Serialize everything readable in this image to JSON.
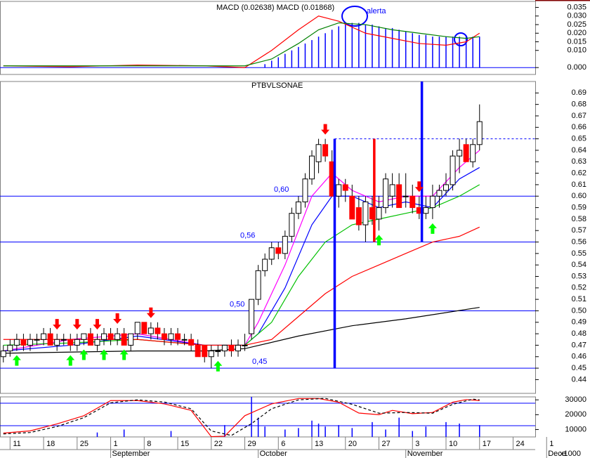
{
  "chart_data": [
    {
      "type": "macd",
      "title": "MACD (0.02638) MACD (0.01868)",
      "annotation": "alerta",
      "xlim": [
        -0.5,
        79.3
      ],
      "ylim": [
        -0.004,
        0.0385
      ],
      "yticks": [
        {
          "value": 0,
          "label": "0.000"
        },
        {
          "value": 0.01,
          "label": "0.010"
        },
        0.015,
        {
          "value": 0.02,
          "label": "0.020"
        },
        0.025,
        {
          "value": 0.03,
          "label": "0.030"
        },
        0.035
      ],
      "series": [
        {
          "color": "#ff0000",
          "x": [
            0,
            10,
            20,
            30,
            36,
            40,
            44,
            47,
            50,
            54,
            58,
            62,
            66,
            69,
            71
          ],
          "values": [
            0.001,
            0.0005,
            0.0015,
            0.001,
            0,
            0.01,
            0.022,
            0.03,
            0.027,
            0.02,
            0.017,
            0.014,
            0.013,
            0.015,
            0.02
          ]
        },
        {
          "color": "#008000",
          "x": [
            0,
            10,
            20,
            30,
            36,
            40,
            44,
            47,
            50,
            54,
            58,
            62,
            66,
            69,
            71
          ],
          "values": [
            0.001,
            0.001,
            0.001,
            0.001,
            0.001,
            0.005,
            0.014,
            0.022,
            0.026,
            0.025,
            0.022,
            0.02,
            0.018,
            0.017,
            0.018
          ]
        }
      ],
      "histogram": {
        "color": "#0000ff",
        "x": [
          39,
          40,
          41,
          42,
          43,
          44,
          45,
          46,
          47,
          48,
          49,
          50,
          51,
          52,
          53,
          54,
          55,
          56,
          57,
          58,
          59,
          60,
          61,
          62,
          63,
          64,
          65,
          66,
          67,
          68,
          69,
          70,
          71
        ],
        "values": [
          0.002,
          0.004,
          0.006,
          0.008,
          0.01,
          0.012,
          0.014,
          0.016,
          0.018,
          0.02,
          0.022,
          0.024,
          0.025,
          0.026,
          0.026,
          0.025,
          0.025,
          0.024,
          0.023,
          0.023,
          0.022,
          0.021,
          0.02,
          0.019,
          0.019,
          0.018,
          0.018,
          0.018,
          0.018,
          0.018,
          0.018,
          0.018,
          0.018
        ]
      }
    },
    {
      "type": "candlestick",
      "title": "PTBVLSONAE",
      "xlim": [
        -0.5,
        79.3
      ],
      "ylim": [
        0.428,
        0.7
      ],
      "yticks": [
        0.44,
        0.45,
        0.46,
        0.47,
        0.48,
        0.49,
        {
          "value": 0.5,
          "label": "0.50"
        },
        0.51,
        0.52,
        0.53,
        0.54,
        0.55,
        0.56,
        0.57,
        0.58,
        0.59,
        {
          "value": 0.6,
          "label": "0.60"
        },
        0.61,
        0.62,
        0.63,
        0.64,
        0.65,
        0.66,
        0.67,
        0.68,
        0.69
      ],
      "up_color": "#ffffff",
      "down_color": "#ff0000",
      "ohlc": [
        [
          0.46,
          0.47,
          0.455,
          0.465
        ],
        [
          0.465,
          0.475,
          0.46,
          0.47
        ],
        [
          0.47,
          0.48,
          0.465,
          0.475
        ],
        [
          0.475,
          0.48,
          0.465,
          0.47
        ],
        [
          0.47,
          0.48,
          0.465,
          0.475
        ],
        [
          0.475,
          0.48,
          0.47,
          0.475
        ],
        [
          0.475,
          0.485,
          0.47,
          0.48
        ],
        [
          0.48,
          0.485,
          0.47,
          0.47
        ],
        [
          0.47,
          0.48,
          0.465,
          0.475
        ],
        [
          0.475,
          0.48,
          0.47,
          0.475
        ],
        [
          0.475,
          0.48,
          0.465,
          0.47
        ],
        [
          0.47,
          0.48,
          0.465,
          0.475
        ],
        [
          0.475,
          0.48,
          0.47,
          0.48
        ],
        [
          0.48,
          0.485,
          0.47,
          0.47
        ],
        [
          0.47,
          0.48,
          0.465,
          0.475
        ],
        [
          0.475,
          0.485,
          0.47,
          0.48
        ],
        [
          0.48,
          0.485,
          0.47,
          0.475
        ],
        [
          0.475,
          0.485,
          0.47,
          0.48
        ],
        [
          0.48,
          0.485,
          0.47,
          0.47
        ],
        [
          0.47,
          0.48,
          0.465,
          0.48
        ],
        [
          0.48,
          0.49,
          0.475,
          0.49
        ],
        [
          0.49,
          0.49,
          0.48,
          0.48
        ],
        [
          0.48,
          0.49,
          0.475,
          0.485
        ],
        [
          0.485,
          0.49,
          0.475,
          0.48
        ],
        [
          0.48,
          0.485,
          0.47,
          0.475
        ],
        [
          0.475,
          0.485,
          0.47,
          0.48
        ],
        [
          0.48,
          0.485,
          0.47,
          0.475
        ],
        [
          0.475,
          0.48,
          0.47,
          0.475
        ],
        [
          0.475,
          0.48,
          0.465,
          0.47
        ],
        [
          0.47,
          0.475,
          0.46,
          0.46
        ],
        [
          0.47,
          0.47,
          0.455,
          0.46
        ],
        [
          0.46,
          0.47,
          0.45,
          0.465
        ],
        [
          0.465,
          0.47,
          0.46,
          0.465
        ],
        [
          0.465,
          0.47,
          0.46,
          0.47
        ],
        [
          0.47,
          0.475,
          0.46,
          0.465
        ],
        [
          0.465,
          0.475,
          0.46,
          0.47
        ],
        [
          0.47,
          0.48,
          0.465,
          0.47
        ],
        [
          0.48,
          0.51,
          0.475,
          0.51
        ],
        [
          0.51,
          0.54,
          0.505,
          0.535
        ],
        [
          0.535,
          0.55,
          0.53,
          0.545
        ],
        [
          0.545,
          0.56,
          0.54,
          0.555
        ],
        [
          0.555,
          0.56,
          0.545,
          0.55
        ],
        [
          0.55,
          0.57,
          0.545,
          0.565
        ],
        [
          0.565,
          0.59,
          0.56,
          0.585
        ],
        [
          0.585,
          0.6,
          0.58,
          0.595
        ],
        [
          0.595,
          0.62,
          0.59,
          0.615
        ],
        [
          0.615,
          0.64,
          0.61,
          0.635
        ],
        [
          0.63,
          0.65,
          0.62,
          0.645
        ],
        [
          0.645,
          0.65,
          0.63,
          0.635
        ],
        [
          0.63,
          0.64,
          0.6,
          0.6
        ],
        [
          0.6,
          0.615,
          0.59,
          0.61
        ],
        [
          0.61,
          0.615,
          0.595,
          0.605
        ],
        [
          0.6,
          0.61,
          0.58,
          0.58
        ],
        [
          0.59,
          0.6,
          0.57,
          0.575
        ],
        [
          0.575,
          0.6,
          0.56,
          0.595
        ],
        [
          0.59,
          0.6,
          0.575,
          0.58
        ],
        [
          0.58,
          0.6,
          0.57,
          0.59
        ],
        [
          0.59,
          0.62,
          0.585,
          0.615
        ],
        [
          0.6,
          0.62,
          0.59,
          0.61
        ],
        [
          0.61,
          0.62,
          0.59,
          0.59
        ],
        [
          0.6,
          0.62,
          0.59,
          0.6
        ],
        [
          0.6,
          0.61,
          0.585,
          0.59
        ],
        [
          0.59,
          0.6,
          0.58,
          0.585
        ],
        [
          0.585,
          0.6,
          0.58,
          0.59
        ],
        [
          0.59,
          0.61,
          0.58,
          0.6
        ],
        [
          0.6,
          0.61,
          0.59,
          0.605
        ],
        [
          0.605,
          0.62,
          0.6,
          0.61
        ],
        [
          0.61,
          0.64,
          0.605,
          0.635
        ],
        [
          0.635,
          0.65,
          0.62,
          0.64
        ],
        [
          0.645,
          0.65,
          0.63,
          0.63
        ],
        [
          0.63,
          0.65,
          0.625,
          0.645
        ],
        [
          0.645,
          0.68,
          0.64,
          0.665
        ]
      ],
      "series": [
        {
          "color": "#ff00ff",
          "x": [
            0,
            10,
            20,
            30,
            36,
            38,
            42,
            46,
            49,
            52,
            56,
            60,
            64,
            68,
            71
          ],
          "values": [
            0.465,
            0.475,
            0.48,
            0.47,
            0.47,
            0.49,
            0.54,
            0.6,
            0.62,
            0.605,
            0.595,
            0.6,
            0.6,
            0.625,
            0.64
          ]
        },
        {
          "color": "#0000ff",
          "x": [
            0,
            10,
            20,
            30,
            36,
            38,
            42,
            46,
            49,
            52,
            56,
            60,
            64,
            68,
            71
          ],
          "values": [
            0.465,
            0.47,
            0.478,
            0.47,
            0.47,
            0.48,
            0.52,
            0.575,
            0.6,
            0.6,
            0.59,
            0.595,
            0.59,
            0.615,
            0.625
          ]
        },
        {
          "color": "#00c000",
          "x": [
            0,
            10,
            20,
            30,
            36,
            40,
            44,
            48,
            52,
            56,
            60,
            64,
            68,
            71
          ],
          "values": [
            0.47,
            0.472,
            0.475,
            0.47,
            0.47,
            0.49,
            0.53,
            0.56,
            0.575,
            0.58,
            0.585,
            0.59,
            0.6,
            0.61
          ]
        },
        {
          "color": "#ff0000",
          "x": [
            0,
            10,
            20,
            30,
            36,
            40,
            44,
            48,
            52,
            56,
            60,
            64,
            68,
            71
          ],
          "values": [
            0.475,
            0.475,
            0.475,
            0.47,
            0.47,
            0.475,
            0.495,
            0.515,
            0.53,
            0.54,
            0.55,
            0.56,
            0.565,
            0.573
          ]
        },
        {
          "color": "#000000",
          "x": [
            0,
            20,
            30,
            36,
            44,
            52,
            60,
            71
          ],
          "values": [
            0.463,
            0.465,
            0.465,
            0.467,
            0.478,
            0.487,
            0.493,
            0.503
          ]
        }
      ],
      "levels": [
        {
          "value": 0.6,
          "label": "0,60"
        },
        {
          "value": 0.56,
          "label": "0,56"
        },
        {
          "value": 0.5,
          "label": "0,50"
        },
        {
          "value": 0.45,
          "label": "0,45"
        }
      ],
      "level_color": "#0000ff",
      "dashed_level": {
        "value": 0.65,
        "from_x": 49.4
      },
      "vlines": [
        {
          "x": 49.4,
          "from": 0.45,
          "to": 0.65,
          "color": "#0000ff"
        },
        {
          "x": 55.3,
          "from": 0.56,
          "to": 0.65,
          "color": "#ff0000"
        },
        {
          "x": 62.4,
          "from": 0.56,
          "to": 0.7,
          "color": "#0000ff"
        }
      ],
      "sell_signals": {
        "color": "#ff0000",
        "x": [
          8,
          11,
          14,
          17,
          22,
          48,
          62
        ]
      },
      "buy_signals": {
        "color": "#00ff00",
        "x": [
          2,
          10,
          12,
          15,
          18,
          32,
          56,
          64
        ]
      }
    },
    {
      "type": "oscillator",
      "xlim": [
        -0.5,
        79.3
      ],
      "ylim": [
        5000,
        32000
      ],
      "yticks": [
        10000,
        20000,
        30000
      ],
      "y_unit_label": "x1000",
      "series": [
        {
          "color": "#ff0000",
          "dashed": false,
          "x": [
            0,
            4,
            8,
            12,
            16,
            20,
            24,
            28,
            31,
            33,
            36,
            40,
            44,
            47,
            50,
            53,
            56,
            58,
            61,
            64,
            67,
            69,
            71
          ],
          "values": [
            7600,
            9100,
            13800,
            19300,
            29500,
            29500,
            27300,
            22900,
            5200,
            5500,
            19300,
            27300,
            30900,
            30900,
            28400,
            21100,
            20000,
            22900,
            20700,
            21500,
            28400,
            30200,
            29500
          ]
        },
        {
          "color": "#000000",
          "dashed": true,
          "x": [
            0,
            4,
            8,
            12,
            16,
            20,
            24,
            28,
            31,
            34,
            37,
            40,
            44,
            48,
            52,
            56,
            60,
            64,
            67,
            70,
            71
          ],
          "values": [
            7000,
            8000,
            12000,
            18000,
            28000,
            30000,
            28500,
            24000,
            9000,
            6000,
            14000,
            24000,
            30000,
            31000,
            27000,
            21000,
            21500,
            21000,
            27000,
            30500,
            30000
          ]
        }
      ],
      "volume": {
        "color": "#0000ff",
        "x": [
          14,
          18,
          25,
          33,
          37,
          38,
          39,
          42,
          44,
          46,
          47,
          48,
          50,
          52,
          55,
          57,
          59,
          61,
          63,
          66,
          68,
          71
        ],
        "values": [
          8000,
          10000,
          9000,
          13000,
          32000,
          18000,
          12000,
          10000,
          11000,
          16000,
          14000,
          12000,
          13000,
          11000,
          15000,
          10000,
          18000,
          9000,
          12000,
          15000,
          14000,
          13000
        ]
      },
      "xticks": [
        {
          "value": 1,
          "label": "11"
        },
        {
          "value": 6,
          "label": "18"
        },
        {
          "value": 11,
          "label": "25"
        },
        {
          "value": 16,
          "label": "1"
        },
        {
          "value": 21,
          "label": "8"
        },
        {
          "value": 26,
          "label": "15"
        },
        {
          "value": 31,
          "label": "22"
        },
        {
          "value": 36,
          "label": "29"
        },
        {
          "value": 41,
          "label": "6"
        },
        {
          "value": 46,
          "label": "13"
        },
        {
          "value": 51,
          "label": "20"
        },
        {
          "value": 56,
          "label": "27"
        },
        {
          "value": 61,
          "label": "3"
        },
        {
          "value": 66,
          "label": "10"
        },
        {
          "value": 71,
          "label": "17"
        },
        {
          "value": 76,
          "label": "24"
        },
        {
          "value": 81,
          "label": "1"
        }
      ],
      "months": [
        {
          "value": 16,
          "label": "September"
        },
        {
          "value": 38,
          "label": "October"
        },
        {
          "value": 60,
          "label": "November"
        },
        {
          "value": 81,
          "label": "Dece"
        }
      ]
    }
  ]
}
